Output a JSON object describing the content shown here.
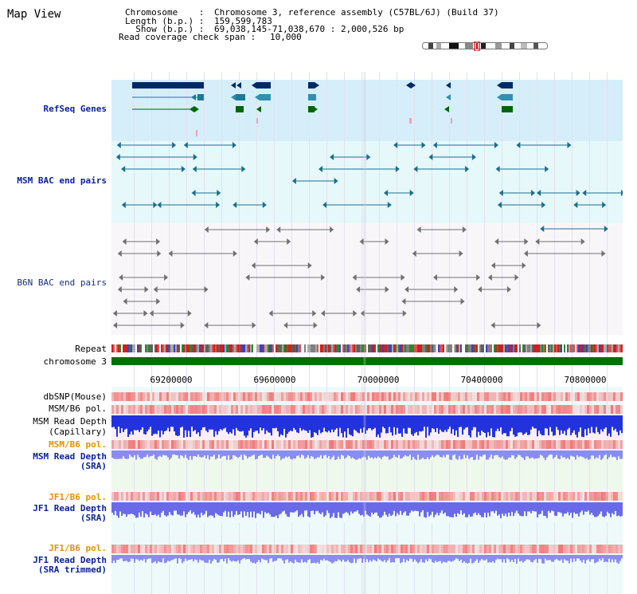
{
  "view": {
    "title": "Map View"
  },
  "info": {
    "chromosome_label": "Chromosome    :",
    "chromosome_value": "Chromosome 3, reference assembly (C57BL/6J) (Build 37)",
    "length_label": "Length (b.p.) :",
    "length_value": "159,599,783",
    "show_label": "  Show (b.p.) :",
    "show_value": "69,038,145-71,038,670 : 2,000,526 bp",
    "coverage_label": "Read coverage check span :",
    "coverage_value": "10,000"
  },
  "tracks": {
    "refseq": "RefSeq Genes",
    "msm_bac": "MSM BAC end pairs",
    "b6n_bac": "B6N BAC end pairs",
    "repeat": "Repeat",
    "chromosome": "chromosome 3",
    "dbsnp": "dbSNP(Mouse)",
    "msm_b6_pol_1": "MSM/B6 pol.",
    "msm_depth_cap_1": "MSM Read Depth",
    "msm_depth_cap_2": "(Capillary)",
    "msm_b6_pol_2": "MSM/B6 pol.",
    "msm_depth_sra_1": "MSM Read Depth",
    "msm_depth_sra_2": "(SRA)",
    "jf1_b6_pol_1": "JF1/B6 pol.",
    "jf1_depth_sra_1": "JF1 Read Depth",
    "jf1_depth_sra_2": "(SRA)",
    "jf1_b6_pol_2": "JF1/B6 pol.",
    "jf1_depth_trim_1": "JF1 Read Depth",
    "jf1_depth_trim_2": "(SRA trimmed)"
  },
  "axis": {
    "ticks": [
      "69200000",
      "69600000",
      "70000000",
      "70400000",
      "70800000"
    ]
  },
  "colors": {
    "refseq_bg": "#d6eefa",
    "msm_bg": "#e6f8fa",
    "b6n_bg": "#f9f6fa",
    "chromosome": "#007000",
    "gene_dark": "#002a66",
    "gene_teal": "#1a7a9a",
    "gene_green": "#006600"
  }
}
